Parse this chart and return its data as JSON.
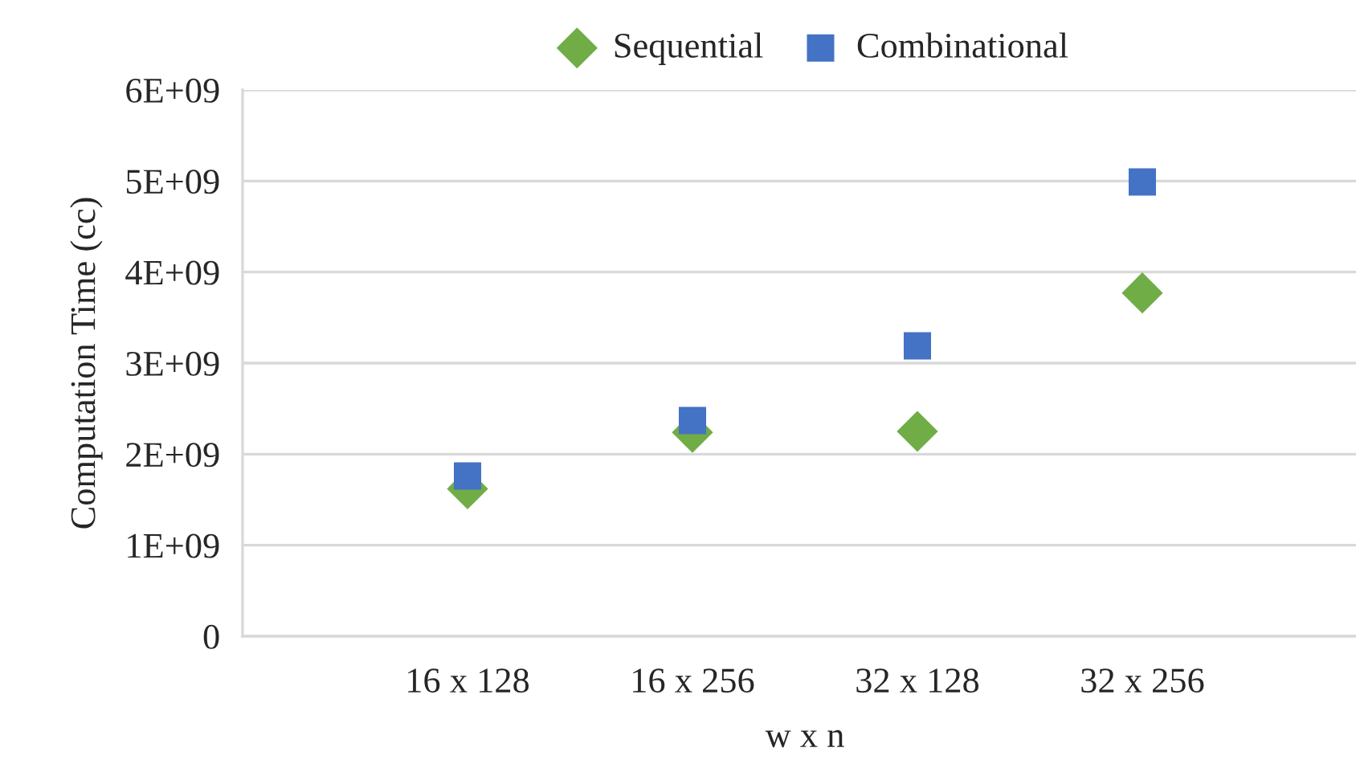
{
  "chart_data": {
    "type": "scatter",
    "xlabel": "w x n",
    "ylabel": "Computation Time (cc)",
    "categories": [
      null,
      "16 x 128",
      "16 x 256",
      "32 x 128",
      "32 x 256",
      null
    ],
    "series": [
      {
        "name": "Sequential",
        "color": "#70ad47",
        "marker": "diamond",
        "values": [
          null,
          1620000000.0,
          2240000000.0,
          2250000000.0,
          3770000000.0,
          null
        ]
      },
      {
        "name": "Combinational",
        "color": "#4472c4",
        "marker": "square",
        "values": [
          null,
          1760000000.0,
          2370000000.0,
          3190000000.0,
          4990000000.0,
          null
        ]
      }
    ],
    "ylim": [
      0,
      6000000000.0
    ],
    "yticks": [
      {
        "value": 0,
        "label": "0"
      },
      {
        "value": 1000000000.0,
        "label": "1E+09"
      },
      {
        "value": 2000000000.0,
        "label": "2E+09"
      },
      {
        "value": 3000000000.0,
        "label": "3E+09"
      },
      {
        "value": 4000000000.0,
        "label": "4E+09"
      },
      {
        "value": 5000000000.0,
        "label": "5E+09"
      },
      {
        "value": 6000000000.0,
        "label": "6E+09"
      }
    ],
    "grid": "y",
    "legend": "top"
  }
}
